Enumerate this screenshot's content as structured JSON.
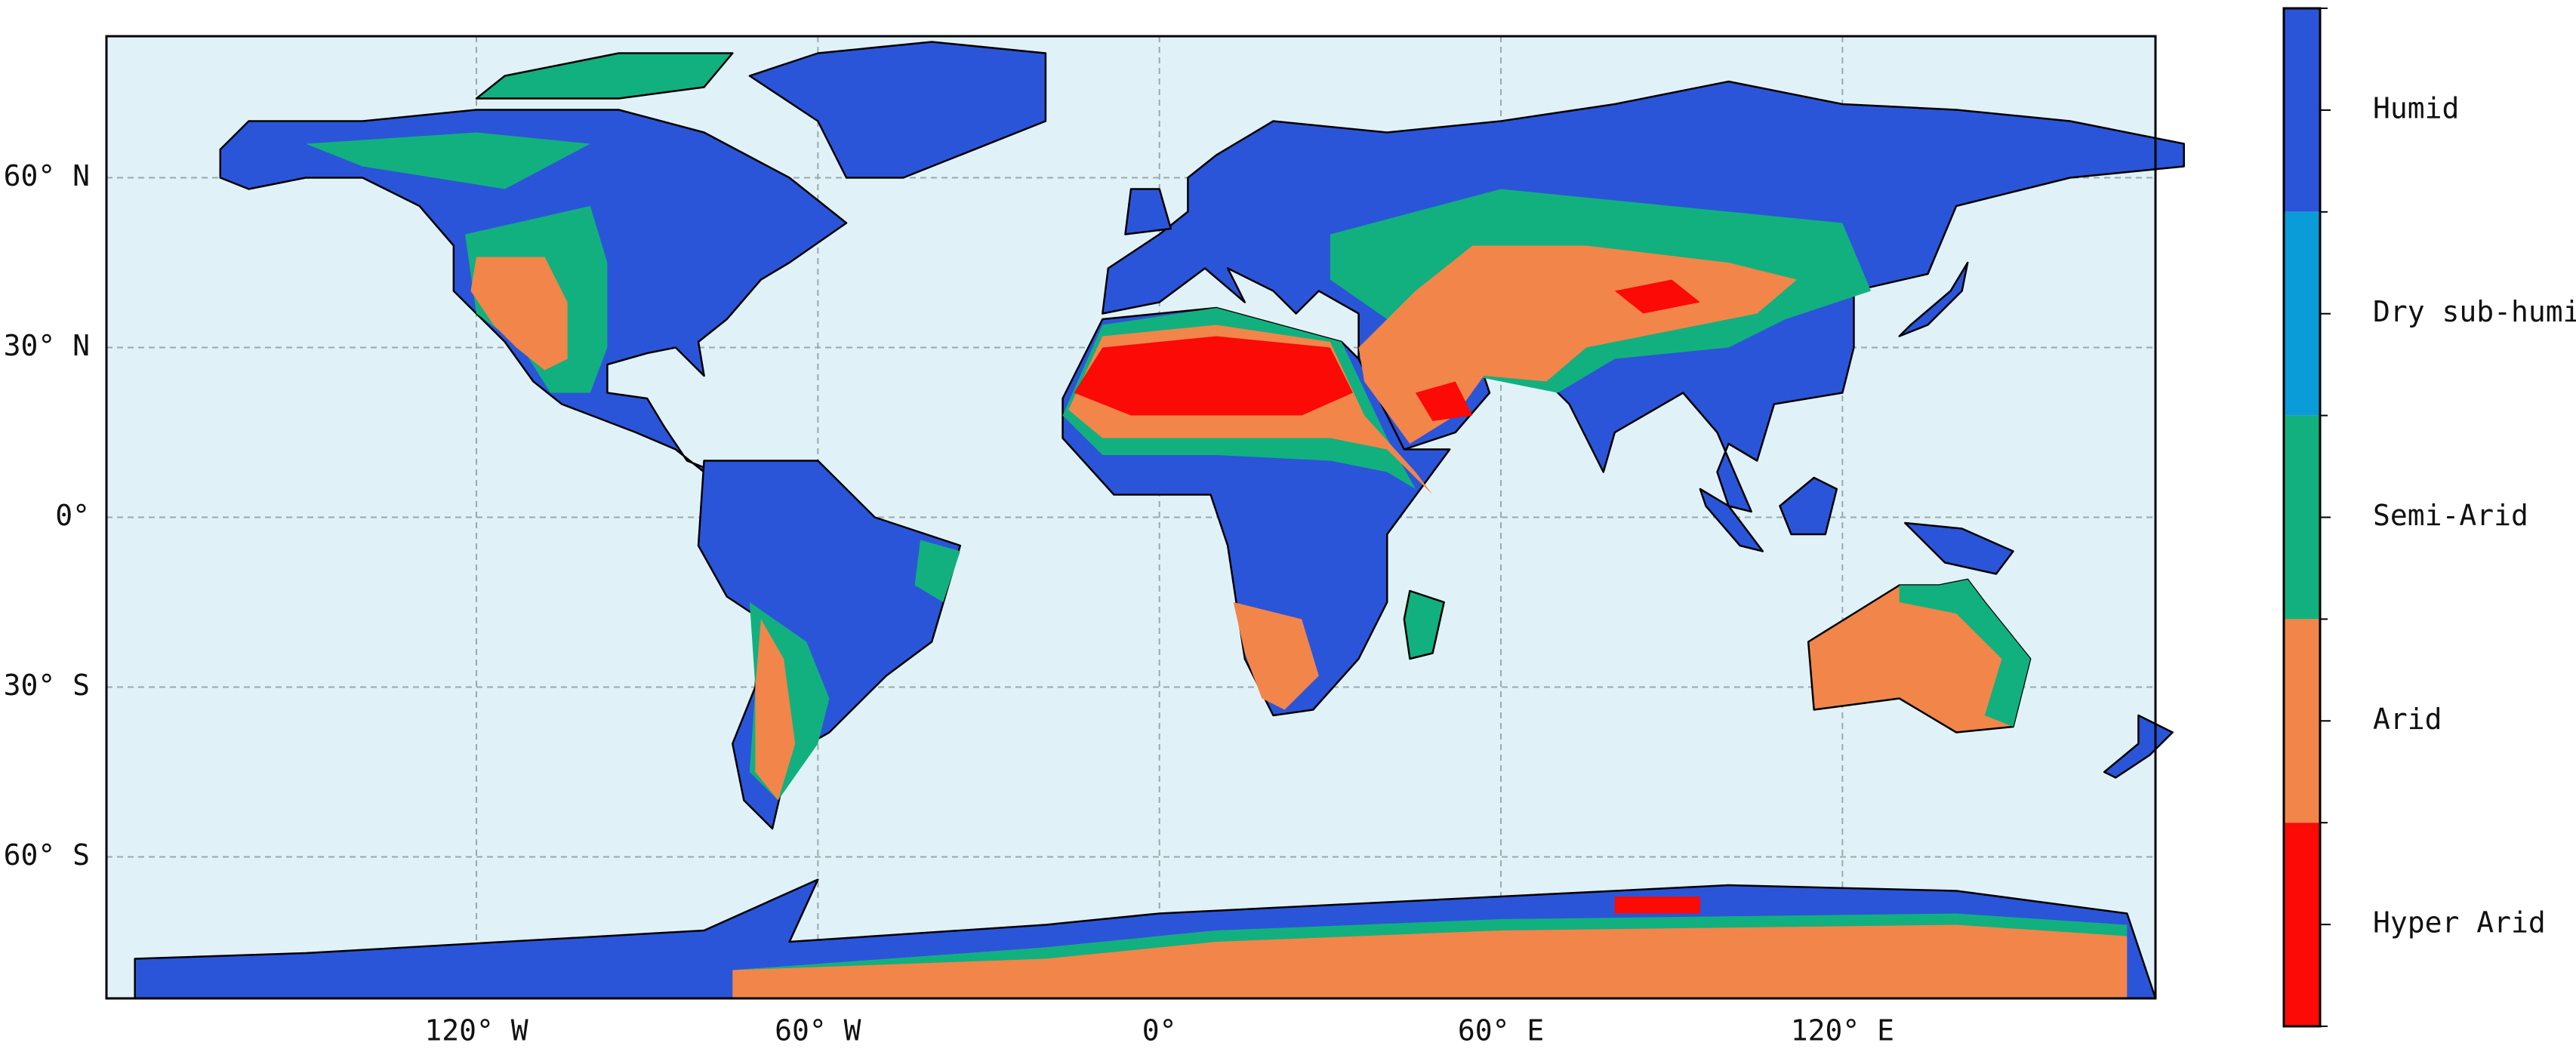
{
  "map": {
    "lon_range": [
      -185,
      175
    ],
    "lat_range": [
      -85,
      85
    ],
    "lon_ticks": [
      {
        "value": -120,
        "label": "120° W"
      },
      {
        "value": -60,
        "label": "60° W"
      },
      {
        "value": 0,
        "label": "0°"
      },
      {
        "value": 60,
        "label": "60° E"
      },
      {
        "value": 120,
        "label": "120° E"
      }
    ],
    "lat_ticks": [
      {
        "value": 60,
        "label": "60° N"
      },
      {
        "value": 30,
        "label": "30° N"
      },
      {
        "value": 0,
        "label": "0°"
      },
      {
        "value": -30,
        "label": "30° S"
      },
      {
        "value": -60,
        "label": "60° S"
      }
    ],
    "legend": [
      {
        "label": "Humid",
        "color": "#2b55d8"
      },
      {
        "label": "Dry sub-humid",
        "color": "#0a9cd8"
      },
      {
        "label": "Semi-Arid",
        "color": "#12b07e"
      },
      {
        "label": "Arid",
        "color": "#f2854a"
      },
      {
        "label": "Hyper Arid",
        "color": "#fb0a06"
      }
    ]
  }
}
